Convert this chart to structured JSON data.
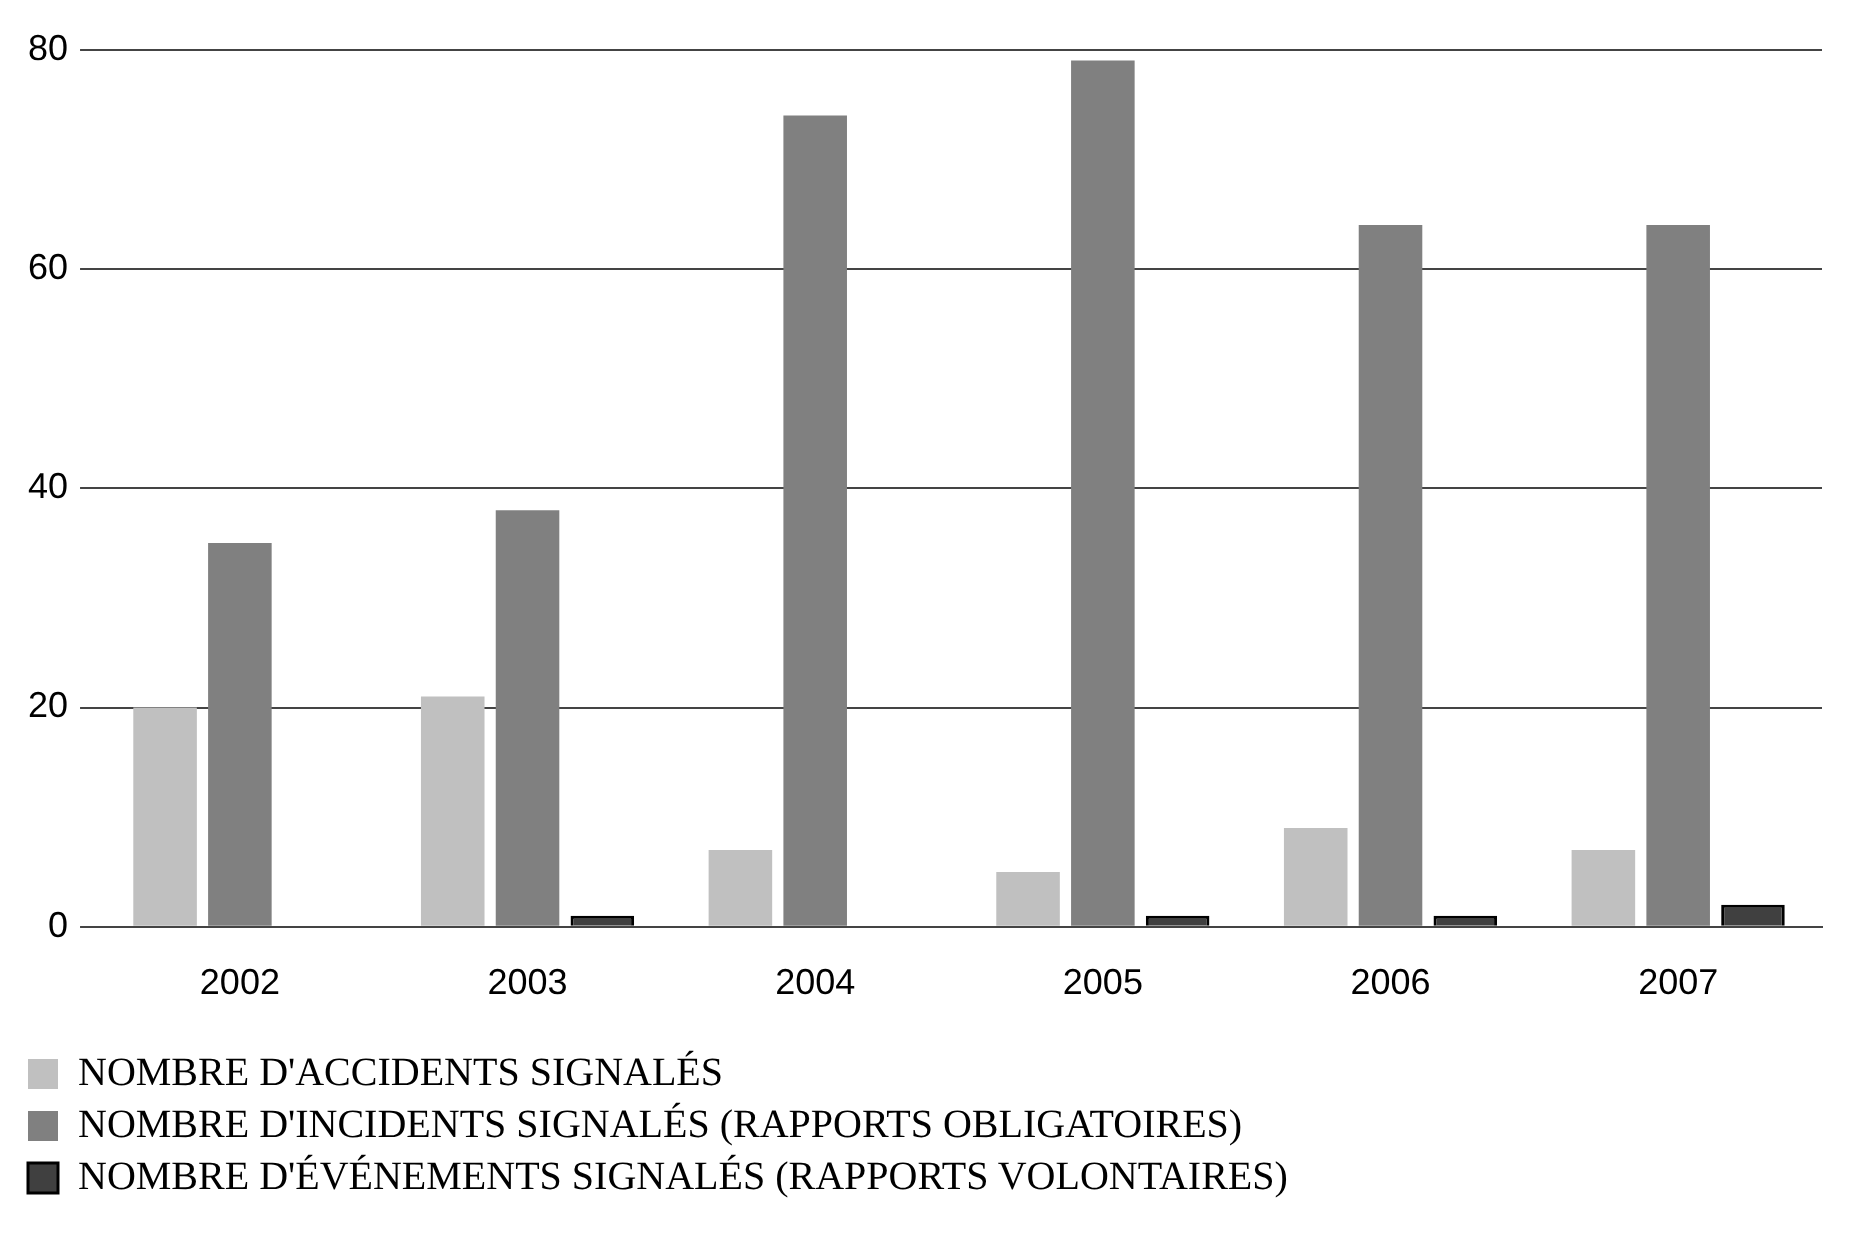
{
  "chart_data": {
    "type": "bar",
    "categories": [
      "2002",
      "2003",
      "2004",
      "2005",
      "2006",
      "2007"
    ],
    "series": [
      {
        "name": "NOMBRE D'ACCIDENTS SIGNALÉS",
        "color": "#c0c0c0",
        "values": [
          20,
          21,
          7,
          5,
          9,
          7
        ]
      },
      {
        "name": "NOMBRE D'INCIDENTS SIGNALÉS (RAPPORTS OBLIGATOIRES)",
        "color": "#808080",
        "values": [
          35,
          38,
          74,
          79,
          64,
          64
        ]
      },
      {
        "name": "NOMBRE D'ÉVÉNEMENTS SIGNALÉS (RAPPORTS VOLONTAIRES)",
        "color": "#404040",
        "values": [
          0,
          1,
          0,
          1,
          1,
          2
        ]
      }
    ],
    "ylim": [
      0,
      80
    ],
    "yticks": [
      0,
      20,
      40,
      60,
      80
    ],
    "grid": "y",
    "legend": "bottom"
  }
}
